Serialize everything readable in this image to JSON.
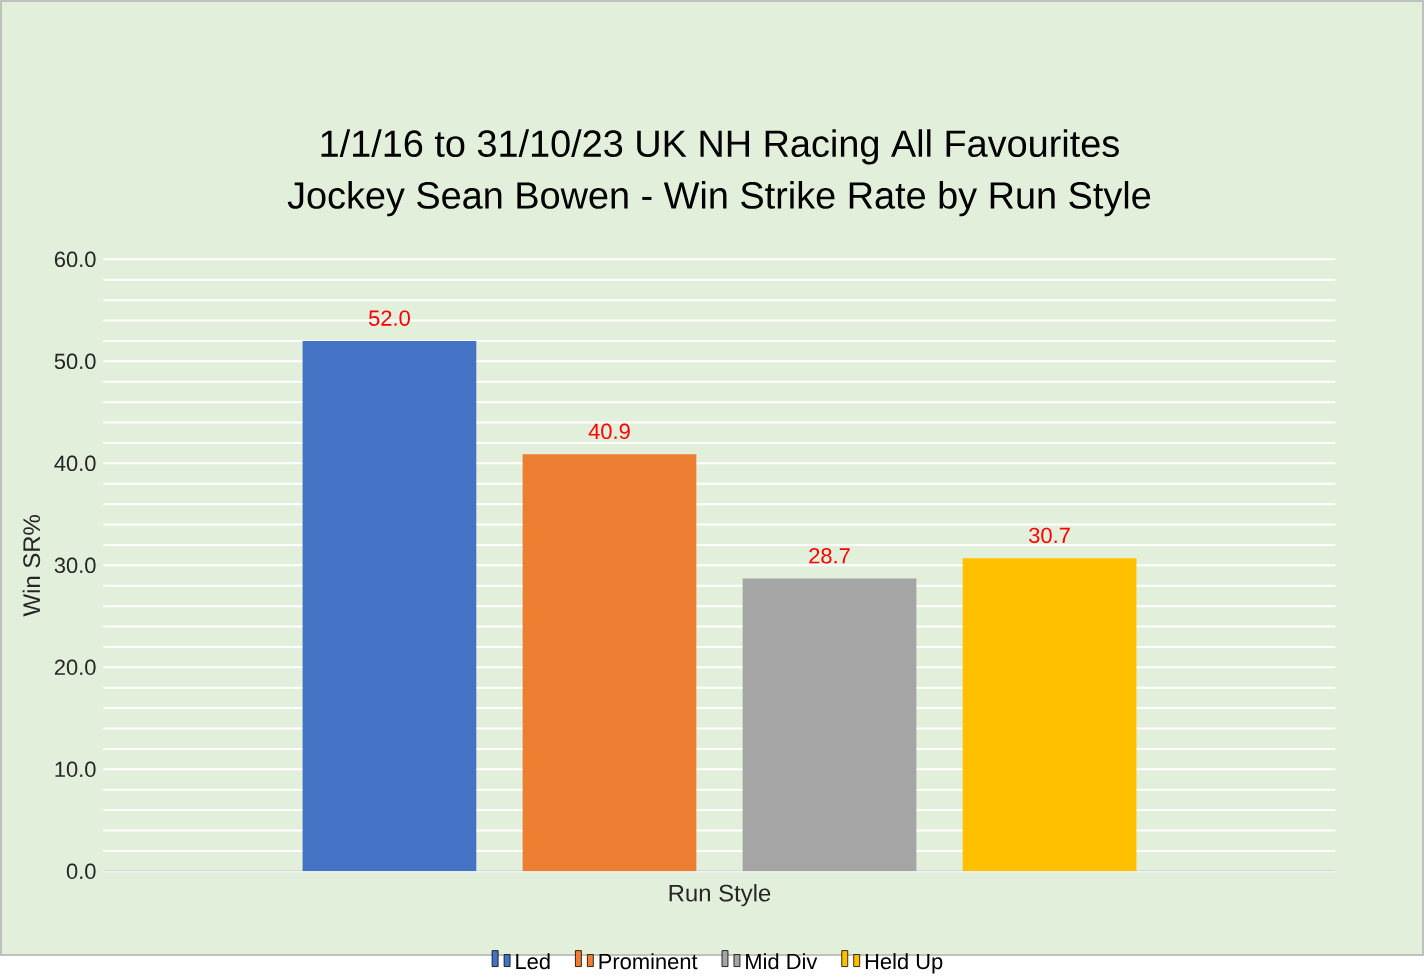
{
  "chart_data": {
    "type": "bar",
    "title": "1/1/16 to 31/10/23 UK NH Racing All Favourites",
    "subtitle": "Jockey Sean Bowen - Win Strike Rate by Run Style",
    "xlabel": "Run Style",
    "ylabel": "Win SR%",
    "categories": [
      null
    ],
    "series": [
      {
        "name": "Led",
        "color": "#4472c4",
        "values": [
          52.0
        ],
        "value_labels": [
          "52.0"
        ]
      },
      {
        "name": "Prominent",
        "color": "#ed7d31",
        "values": [
          40.9
        ],
        "value_labels": [
          "40.9"
        ]
      },
      {
        "name": "Mid Div",
        "color": "#a5a5a5",
        "values": [
          28.7
        ],
        "value_labels": [
          "28.7"
        ]
      },
      {
        "name": "Held Up",
        "color": "#ffc000",
        "values": [
          30.7
        ],
        "value_labels": [
          "30.7"
        ]
      }
    ],
    "ylim": [
      0,
      60
    ],
    "yticks": [
      {
        "value": 0,
        "label": "0.0"
      },
      {
        "value": 2,
        "label": null
      },
      {
        "value": 4,
        "label": null
      },
      {
        "value": 6,
        "label": null
      },
      {
        "value": 8,
        "label": null
      },
      {
        "value": 10,
        "label": "10.0"
      },
      {
        "value": 12,
        "label": null
      },
      {
        "value": 14,
        "label": null
      },
      {
        "value": 16,
        "label": null
      },
      {
        "value": 18,
        "label": null
      },
      {
        "value": 20,
        "label": "20.0"
      },
      {
        "value": 22,
        "label": null
      },
      {
        "value": 24,
        "label": null
      },
      {
        "value": 26,
        "label": null
      },
      {
        "value": 28,
        "label": null
      },
      {
        "value": 30,
        "label": "30.0"
      },
      {
        "value": 32,
        "label": null
      },
      {
        "value": 34,
        "label": null
      },
      {
        "value": 36,
        "label": null
      },
      {
        "value": 38,
        "label": null
      },
      {
        "value": 40,
        "label": "40.0"
      },
      {
        "value": 42,
        "label": null
      },
      {
        "value": 44,
        "label": null
      },
      {
        "value": 46,
        "label": null
      },
      {
        "value": 48,
        "label": null
      },
      {
        "value": 50,
        "label": "50.0"
      },
      {
        "value": 52,
        "label": null
      },
      {
        "value": 54,
        "label": null
      },
      {
        "value": 56,
        "label": null
      },
      {
        "value": 58,
        "label": null
      },
      {
        "value": 60,
        "label": "60.0"
      }
    ],
    "grid": "y",
    "legend": "bottom"
  }
}
